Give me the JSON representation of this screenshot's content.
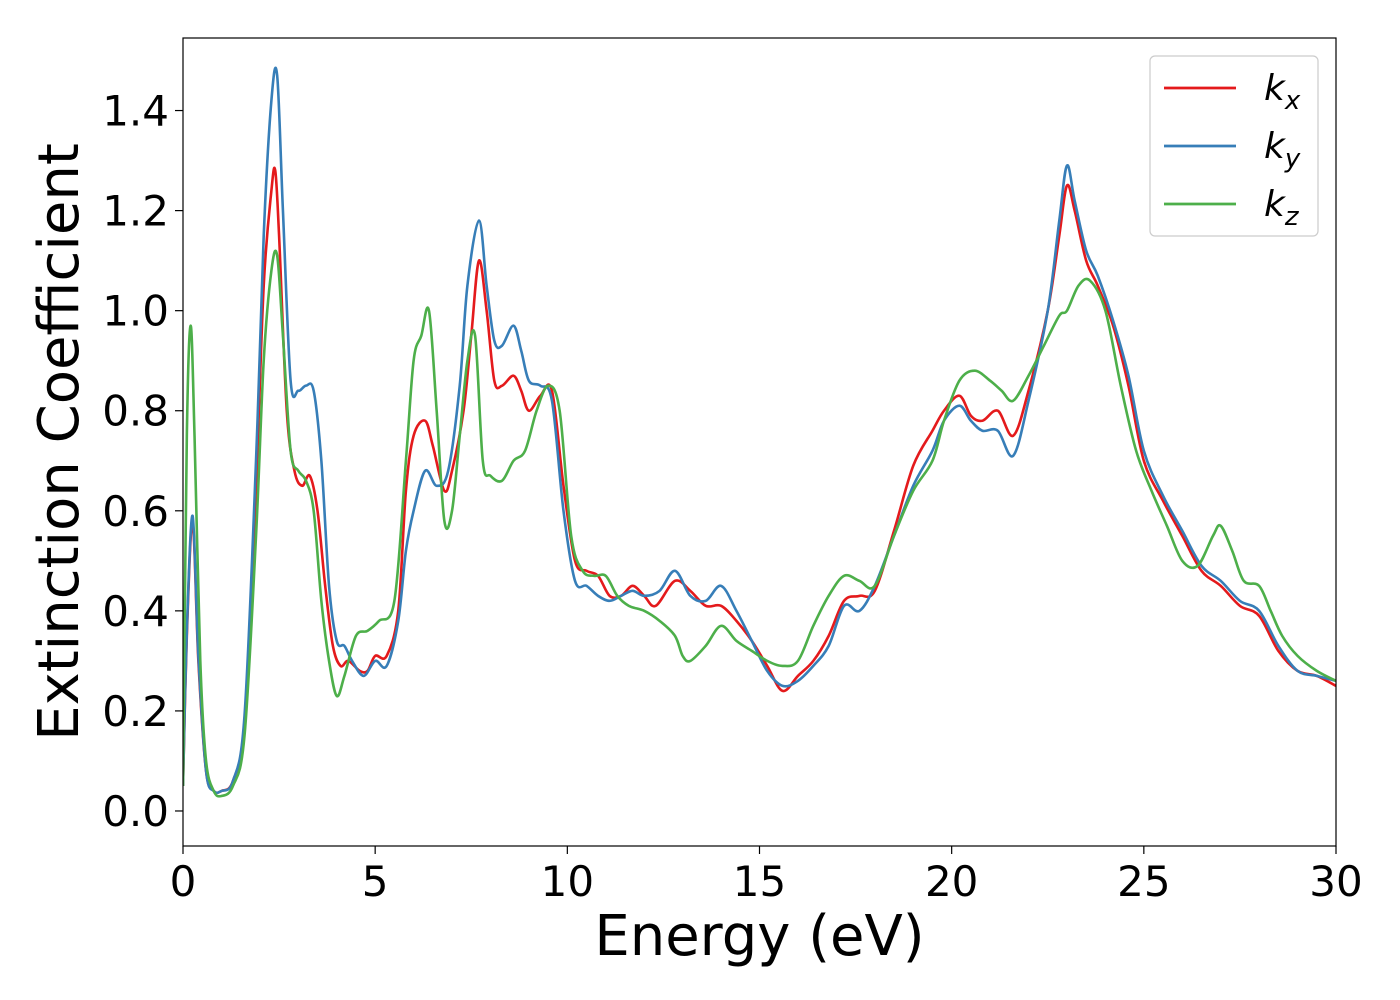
{
  "chart_data": {
    "type": "line",
    "xlabel": "Energy (eV)",
    "ylabel": "Extinction Coefficient",
    "xlim": [
      0,
      30
    ],
    "ylim": [
      -0.07,
      1.545
    ],
    "xticks": [
      0,
      5,
      10,
      15,
      20,
      25,
      30
    ],
    "xtick_labels": [
      "0",
      "5",
      "10",
      "15",
      "20",
      "25",
      "30"
    ],
    "yticks": [
      0.0,
      0.2,
      0.4,
      0.6,
      0.8,
      1.0,
      1.2,
      1.4
    ],
    "ytick_labels": [
      "0.0",
      "0.2",
      "0.4",
      "0.6",
      "0.8",
      "1.0",
      "1.2",
      "1.4"
    ],
    "grid": false,
    "legend_position": "top-right",
    "series": [
      {
        "name": "k",
        "subscript": "x",
        "color": "#e41a1c",
        "x": [
          0,
          0.1,
          0.25,
          0.4,
          0.6,
          0.8,
          1.0,
          1.3,
          1.6,
          1.9,
          2.1,
          2.3,
          2.4,
          2.5,
          2.7,
          2.9,
          3.1,
          3.3,
          3.5,
          3.7,
          3.9,
          4.1,
          4.3,
          4.6,
          4.8,
          5.0,
          5.3,
          5.6,
          5.8,
          6.0,
          6.3,
          6.5,
          6.8,
          7.0,
          7.3,
          7.5,
          7.7,
          7.9,
          8.1,
          8.3,
          8.6,
          8.8,
          9.0,
          9.3,
          9.6,
          9.9,
          10.2,
          10.5,
          10.8,
          11.1,
          11.4,
          11.7,
          12.0,
          12.3,
          12.8,
          13.2,
          13.6,
          14.0,
          14.4,
          14.8,
          15.2,
          15.6,
          16.0,
          16.4,
          16.8,
          17.2,
          17.6,
          18.0,
          18.5,
          19.0,
          19.5,
          19.8,
          20.2,
          20.5,
          20.8,
          21.2,
          21.6,
          22.0,
          22.5,
          22.8,
          23.0,
          23.2,
          23.5,
          23.8,
          24.2,
          24.6,
          25.0,
          25.5,
          26.0,
          26.5,
          27.0,
          27.5,
          28.0,
          28.5,
          29.0,
          29.5,
          30.0
        ],
        "y": [
          0.05,
          0.35,
          0.58,
          0.3,
          0.08,
          0.04,
          0.04,
          0.06,
          0.18,
          0.65,
          1.05,
          1.24,
          1.28,
          1.15,
          0.8,
          0.68,
          0.65,
          0.67,
          0.6,
          0.45,
          0.33,
          0.29,
          0.3,
          0.28,
          0.28,
          0.31,
          0.31,
          0.4,
          0.64,
          0.75,
          0.78,
          0.73,
          0.64,
          0.68,
          0.8,
          0.95,
          1.1,
          1.0,
          0.86,
          0.85,
          0.87,
          0.84,
          0.8,
          0.83,
          0.84,
          0.65,
          0.5,
          0.48,
          0.47,
          0.43,
          0.43,
          0.45,
          0.43,
          0.41,
          0.46,
          0.44,
          0.41,
          0.41,
          0.38,
          0.34,
          0.29,
          0.24,
          0.27,
          0.3,
          0.35,
          0.42,
          0.43,
          0.44,
          0.56,
          0.69,
          0.76,
          0.8,
          0.83,
          0.79,
          0.78,
          0.8,
          0.75,
          0.84,
          1.0,
          1.15,
          1.25,
          1.2,
          1.1,
          1.05,
          0.97,
          0.85,
          0.7,
          0.62,
          0.55,
          0.48,
          0.45,
          0.41,
          0.39,
          0.32,
          0.28,
          0.27,
          0.25
        ]
      },
      {
        "name": "k",
        "subscript": "y",
        "color": "#377eb8",
        "x": [
          0,
          0.1,
          0.25,
          0.4,
          0.6,
          0.8,
          1.0,
          1.3,
          1.6,
          1.9,
          2.1,
          2.3,
          2.45,
          2.6,
          2.8,
          3.0,
          3.2,
          3.4,
          3.6,
          3.8,
          4.0,
          4.2,
          4.4,
          4.7,
          5.0,
          5.3,
          5.6,
          5.8,
          6.0,
          6.3,
          6.6,
          6.9,
          7.2,
          7.4,
          7.7,
          7.9,
          8.1,
          8.3,
          8.6,
          8.8,
          9.0,
          9.3,
          9.6,
          9.9,
          10.2,
          10.5,
          10.8,
          11.1,
          11.4,
          11.7,
          12.0,
          12.4,
          12.8,
          13.2,
          13.6,
          14.0,
          14.4,
          14.8,
          15.2,
          15.6,
          16.0,
          16.4,
          16.8,
          17.2,
          17.6,
          18.0,
          18.5,
          19.0,
          19.5,
          19.8,
          20.2,
          20.5,
          20.8,
          21.2,
          21.6,
          22.0,
          22.5,
          22.8,
          23.0,
          23.2,
          23.5,
          23.8,
          24.2,
          24.6,
          25.0,
          25.5,
          26.0,
          26.5,
          27.0,
          27.5,
          28.0,
          28.5,
          29.0,
          29.5,
          30.0
        ],
        "y": [
          0.05,
          0.36,
          0.59,
          0.31,
          0.08,
          0.04,
          0.04,
          0.06,
          0.19,
          0.7,
          1.15,
          1.42,
          1.47,
          1.2,
          0.86,
          0.84,
          0.85,
          0.84,
          0.7,
          0.45,
          0.34,
          0.33,
          0.3,
          0.27,
          0.3,
          0.29,
          0.38,
          0.52,
          0.6,
          0.68,
          0.65,
          0.68,
          0.85,
          1.05,
          1.18,
          1.05,
          0.94,
          0.93,
          0.97,
          0.92,
          0.86,
          0.85,
          0.82,
          0.6,
          0.46,
          0.45,
          0.43,
          0.42,
          0.43,
          0.44,
          0.43,
          0.44,
          0.48,
          0.43,
          0.42,
          0.45,
          0.4,
          0.34,
          0.28,
          0.25,
          0.26,
          0.29,
          0.33,
          0.41,
          0.4,
          0.45,
          0.55,
          0.65,
          0.72,
          0.78,
          0.81,
          0.78,
          0.76,
          0.76,
          0.71,
          0.82,
          1.0,
          1.18,
          1.29,
          1.22,
          1.12,
          1.07,
          0.98,
          0.87,
          0.72,
          0.63,
          0.56,
          0.49,
          0.46,
          0.42,
          0.4,
          0.33,
          0.28,
          0.27,
          0.26
        ]
      },
      {
        "name": "k",
        "subscript": "z",
        "color": "#4daf4a",
        "x": [
          0,
          0.1,
          0.2,
          0.3,
          0.45,
          0.6,
          0.8,
          1.0,
          1.3,
          1.6,
          1.9,
          2.1,
          2.3,
          2.45,
          2.6,
          2.8,
          3.0,
          3.2,
          3.4,
          3.6,
          3.8,
          4.0,
          4.2,
          4.5,
          4.8,
          5.1,
          5.5,
          5.8,
          6.0,
          6.2,
          6.4,
          6.6,
          6.8,
          7.0,
          7.2,
          7.4,
          7.6,
          7.8,
          8.0,
          8.3,
          8.6,
          8.9,
          9.2,
          9.5,
          9.8,
          10.1,
          10.4,
          10.7,
          11.0,
          11.3,
          11.6,
          12.0,
          12.4,
          12.8,
          13.0,
          13.2,
          13.6,
          14.0,
          14.4,
          14.8,
          15.2,
          15.6,
          16.0,
          16.4,
          16.8,
          17.2,
          17.6,
          18.0,
          18.5,
          19.0,
          19.5,
          19.8,
          20.2,
          20.6,
          21.0,
          21.3,
          21.6,
          22.0,
          22.4,
          22.8,
          23.0,
          23.3,
          23.6,
          24.0,
          24.4,
          24.8,
          25.2,
          25.6,
          26.0,
          26.4,
          26.8,
          27.0,
          27.3,
          27.6,
          28.0,
          28.3,
          28.6,
          29.0,
          29.5,
          30.0
        ],
        "y": [
          0.05,
          0.75,
          0.97,
          0.75,
          0.3,
          0.1,
          0.04,
          0.03,
          0.05,
          0.15,
          0.55,
          0.9,
          1.08,
          1.11,
          0.95,
          0.72,
          0.68,
          0.66,
          0.6,
          0.42,
          0.3,
          0.23,
          0.27,
          0.35,
          0.36,
          0.38,
          0.42,
          0.7,
          0.9,
          0.95,
          1.0,
          0.8,
          0.58,
          0.6,
          0.75,
          0.9,
          0.95,
          0.7,
          0.67,
          0.66,
          0.7,
          0.72,
          0.8,
          0.85,
          0.8,
          0.55,
          0.48,
          0.47,
          0.47,
          0.43,
          0.41,
          0.4,
          0.38,
          0.35,
          0.31,
          0.3,
          0.33,
          0.37,
          0.34,
          0.32,
          0.3,
          0.29,
          0.3,
          0.37,
          0.43,
          0.47,
          0.46,
          0.45,
          0.55,
          0.64,
          0.7,
          0.78,
          0.86,
          0.88,
          0.86,
          0.84,
          0.82,
          0.87,
          0.93,
          0.99,
          1.0,
          1.05,
          1.06,
          1.0,
          0.85,
          0.72,
          0.64,
          0.57,
          0.5,
          0.49,
          0.55,
          0.57,
          0.52,
          0.46,
          0.45,
          0.4,
          0.35,
          0.31,
          0.28,
          0.26
        ]
      }
    ]
  }
}
